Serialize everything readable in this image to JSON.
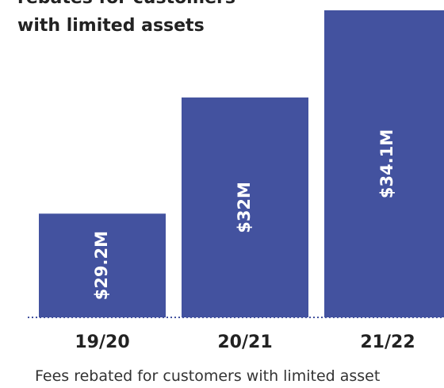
{
  "chart_data": {
    "type": "bar",
    "title_lines": [
      "rebates for customers",
      "with limited assets"
    ],
    "caption": "Fees rebated for customers with limited asset",
    "categories": [
      "19/20",
      "20/21",
      "21/22"
    ],
    "values": [
      29.2,
      32,
      34.1
    ],
    "value_labels": [
      "$29.2M",
      "$32M",
      "$34.1M"
    ],
    "color": "#43529f",
    "ylim": [
      26.7,
      34.1
    ]
  }
}
